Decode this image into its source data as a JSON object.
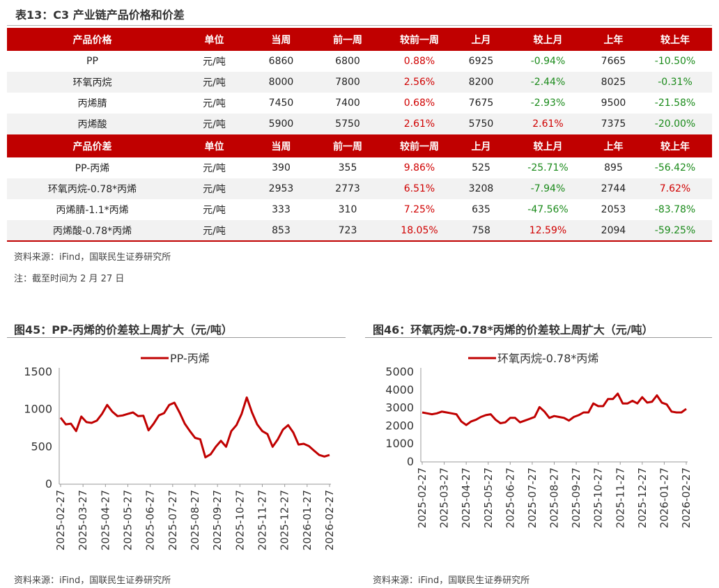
{
  "table": {
    "title": "表13：C3 产业链产品价格和价差",
    "header1": [
      "产品价格",
      "单位",
      "当周",
      "前一周",
      "较前一周",
      "上月",
      "较上月",
      "上年",
      "较上年"
    ],
    "rows1": [
      [
        "PP",
        "元/吨",
        "6860",
        "6800",
        "0.88%",
        "6925",
        "-0.94%",
        "7665",
        "-10.50%"
      ],
      [
        "环氧丙烷",
        "元/吨",
        "8000",
        "7800",
        "2.56%",
        "8200",
        "-2.44%",
        "8025",
        "-0.31%"
      ],
      [
        "丙烯腈",
        "元/吨",
        "7450",
        "7400",
        "0.68%",
        "7675",
        "-2.93%",
        "9500",
        "-21.58%"
      ],
      [
        "丙烯酸",
        "元/吨",
        "5900",
        "5750",
        "2.61%",
        "5750",
        "2.61%",
        "7375",
        "-20.00%"
      ]
    ],
    "header2": [
      "产品价差",
      "单位",
      "当周",
      "前一周",
      "较前一周",
      "上月",
      "较上月",
      "上年",
      "较上年"
    ],
    "rows2": [
      [
        "PP-丙烯",
        "元/吨",
        "390",
        "355",
        "9.86%",
        "525",
        "-25.71%",
        "895",
        "-56.42%"
      ],
      [
        "环氧丙烷-0.78*丙烯",
        "元/吨",
        "2953",
        "2773",
        "6.51%",
        "3208",
        "-7.94%",
        "2744",
        "7.62%"
      ],
      [
        "丙烯腈-1.1*丙烯",
        "元/吨",
        "333",
        "310",
        "7.25%",
        "635",
        "-47.56%",
        "2053",
        "-83.78%"
      ],
      [
        "丙烯酸-0.78*丙烯",
        "元/吨",
        "853",
        "723",
        "18.05%",
        "758",
        "12.59%",
        "2094",
        "-59.25%"
      ]
    ],
    "source": "资料来源：iFind，国联民生证券研究所",
    "note": "注：截至时间为 2 月 27 日",
    "colors": {
      "header_bg": "#c00000",
      "positive": "#d00000",
      "negative": "#1a8a1a"
    }
  },
  "figures": [
    {
      "title": "图45：PP-丙烯的价差较上周扩大（元/吨）",
      "source": "资料来源：iFind，国联民生证券研究所"
    },
    {
      "title": "图46：环氧丙烷-0.78*丙烯的价差较上周扩大（元/吨）",
      "source": "资料来源：iFind，国联民生证券研究所"
    }
  ],
  "chart_data": [
    {
      "type": "line",
      "title": "图45：PP-丙烯的价差较上周扩大（元/吨）",
      "series": [
        {
          "name": "PP-丙烯",
          "color": "#c00000",
          "values": [
            890,
            800,
            810,
            710,
            905,
            830,
            820,
            850,
            940,
            1060,
            970,
            910,
            920,
            940,
            960,
            910,
            915,
            720,
            810,
            920,
            950,
            1060,
            1090,
            960,
            810,
            710,
            620,
            600,
            360,
            400,
            500,
            580,
            500,
            710,
            790,
            940,
            1160,
            960,
            800,
            710,
            670,
            500,
            600,
            730,
            790,
            690,
            530,
            540,
            510,
            450,
            390,
            370,
            390
          ]
        }
      ],
      "x_ticks": [
        "2025-02-27",
        "2025-03-27",
        "2025-04-27",
        "2025-05-27",
        "2025-06-27",
        "2025-07-27",
        "2025-08-27",
        "2025-09-27",
        "2025-10-27",
        "2025-11-27",
        "2025-12-27",
        "2026-01-27",
        "2026-02-27"
      ],
      "x_range": [
        "2025-02-27",
        "2026-02-27"
      ],
      "y_ticks": [
        0,
        500,
        1000,
        1500
      ],
      "ylim": [
        0,
        1500
      ],
      "legend": "top-center",
      "grid": false
    },
    {
      "type": "line",
      "title": "图46：环氧丙烷-0.78*丙烯的价差较上周扩大（元/吨）",
      "series": [
        {
          "name": "环氧丙烷-0.78*丙烯",
          "color": "#c00000",
          "values": [
            2750,
            2700,
            2650,
            2700,
            2800,
            2750,
            2700,
            2650,
            2250,
            2050,
            2250,
            2350,
            2500,
            2600,
            2650,
            2350,
            2150,
            2200,
            2450,
            2450,
            2200,
            2300,
            2400,
            2500,
            3050,
            2800,
            2450,
            2550,
            2500,
            2450,
            2300,
            2500,
            2600,
            2750,
            2750,
            3250,
            3100,
            3100,
            3500,
            3500,
            3800,
            3250,
            3250,
            3400,
            3250,
            3600,
            3300,
            3350,
            3700,
            3300,
            3200,
            2800,
            2750,
            2750,
            2950
          ]
        }
      ],
      "x_ticks": [
        "2025-02-27",
        "2025-03-27",
        "2025-04-27",
        "2025-05-27",
        "2025-06-27",
        "2025-07-27",
        "2025-08-27",
        "2025-09-27",
        "2025-10-27",
        "2025-11-27",
        "2025-12-27",
        "2026-01-27",
        "2026-02-27"
      ],
      "x_range": [
        "2025-02-27",
        "2026-02-27"
      ],
      "y_ticks": [
        0,
        1000,
        2000,
        3000,
        4000,
        5000
      ],
      "ylim": [
        0,
        5000
      ],
      "legend": "top-center",
      "grid": false
    }
  ]
}
